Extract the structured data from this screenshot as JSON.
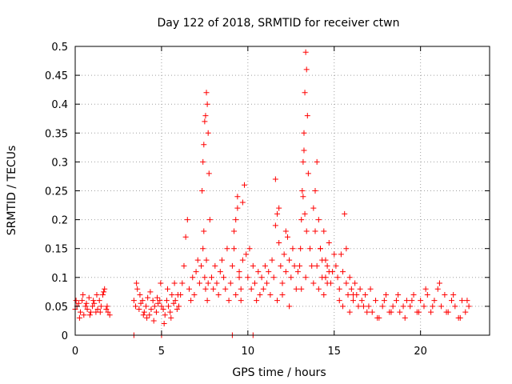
{
  "chart_data": {
    "type": "scatter",
    "title": "Day 122 of 2018, SRMTID for receiver ctwn",
    "xlabel": "GPS time / hours",
    "ylabel": "SRMTID / TECUs",
    "xlim": [
      0,
      24
    ],
    "ylim": [
      0,
      0.5
    ],
    "xticks": [
      0,
      5,
      10,
      15,
      20
    ],
    "xtick_labels": [
      "0",
      "5",
      "10",
      "15",
      "20"
    ],
    "yticks": [
      0,
      0.05,
      0.1,
      0.15,
      0.2,
      0.25,
      0.3,
      0.35,
      0.4,
      0.45,
      0.5
    ],
    "ytick_labels": [
      "0",
      "0.05",
      "0.1",
      "0.15",
      "0.2",
      "0.25",
      "0.3",
      "0.35",
      "0.4",
      "0.45",
      "0.5"
    ],
    "grid": true,
    "marker": "+",
    "color": "#ff0000",
    "series": [
      {
        "name": "SRMTID",
        "x": [
          0.0,
          0.1,
          0.2,
          0.3,
          0.4,
          0.5,
          0.6,
          0.7,
          0.8,
          0.9,
          1.0,
          1.1,
          1.2,
          1.3,
          1.4,
          1.5,
          1.6,
          1.7,
          1.8,
          1.9,
          2.0,
          0.05,
          0.25,
          0.45,
          0.65,
          0.85,
          1.05,
          1.25,
          1.45,
          1.65,
          1.85,
          3.4,
          3.5,
          3.6,
          3.7,
          3.8,
          3.9,
          4.0,
          4.1,
          4.2,
          4.3,
          4.4,
          4.5,
          4.6,
          4.7,
          4.8,
          4.9,
          5.0,
          5.1,
          5.2,
          5.3,
          5.4,
          5.5,
          5.6,
          5.7,
          5.8,
          5.9,
          6.0,
          3.55,
          3.75,
          3.95,
          4.15,
          4.35,
          4.55,
          4.75,
          4.95,
          5.15,
          5.35,
          5.55,
          5.75,
          5.95,
          6.1,
          6.2,
          6.3,
          6.4,
          6.5,
          6.6,
          6.7,
          6.8,
          6.9,
          7.0,
          7.1,
          7.2,
          7.3,
          7.35,
          7.4,
          7.45,
          7.5,
          7.55,
          7.6,
          7.65,
          7.7,
          7.75,
          7.8,
          7.4,
          7.45,
          7.5,
          7.55,
          7.6,
          7.65,
          7.7,
          7.9,
          8.0,
          8.1,
          8.2,
          8.3,
          8.4,
          8.5,
          8.6,
          8.7,
          8.8,
          8.9,
          9.0,
          9.1,
          9.2,
          9.3,
          9.4,
          9.5,
          9.6,
          9.7,
          9.8,
          9.9,
          9.2,
          9.3,
          9.4,
          9.5,
          9.6,
          9.7,
          10.0,
          10.1,
          10.2,
          10.3,
          10.4,
          10.5,
          10.6,
          10.7,
          10.8,
          10.9,
          11.0,
          11.1,
          11.2,
          11.3,
          11.4,
          11.5,
          11.6,
          11.7,
          11.8,
          11.9,
          12.0,
          12.1,
          12.2,
          12.3,
          12.4,
          12.5,
          12.6,
          12.7,
          12.8,
          12.9,
          11.6,
          11.7,
          11.8,
          12.0,
          12.2,
          12.4,
          13.0,
          13.05,
          13.1,
          13.15,
          13.2,
          13.25,
          13.3,
          13.35,
          13.4,
          13.45,
          13.5,
          13.1,
          13.2,
          13.25,
          13.3,
          13.35,
          13.4,
          13.6,
          13.7,
          13.8,
          13.9,
          14.0,
          14.1,
          14.2,
          14.3,
          14.4,
          14.5,
          14.6,
          14.7,
          14.8,
          14.9,
          15.0,
          13.8,
          13.9,
          14.0,
          14.1,
          14.2,
          14.3,
          14.4,
          14.5,
          14.6,
          14.7,
          15.1,
          15.2,
          15.3,
          15.4,
          15.5,
          15.6,
          15.7,
          15.8,
          15.9,
          16.0,
          16.1,
          16.2,
          16.3,
          16.4,
          16.5,
          16.6,
          16.7,
          16.8,
          16.9,
          15.3,
          15.5,
          15.7,
          15.9,
          16.1,
          17.0,
          17.2,
          17.4,
          17.6,
          17.8,
          18.0,
          18.2,
          18.4,
          18.6,
          18.8,
          19.0,
          19.2,
          19.4,
          19.6,
          19.8,
          20.0,
          20.2,
          20.4,
          20.6,
          20.8,
          21.0,
          21.2,
          21.4,
          21.6,
          21.8,
          22.0,
          22.2,
          22.4,
          22.6,
          22.8,
          17.1,
          17.5,
          17.9,
          18.3,
          18.7,
          19.1,
          19.5,
          19.9,
          20.3,
          20.7,
          21.1,
          21.5,
          21.9,
          22.3,
          22.7,
          3.4,
          5.0,
          9.1,
          10.3
        ],
        "y": [
          0.045,
          0.05,
          0.055,
          0.04,
          0.06,
          0.035,
          0.05,
          0.045,
          0.065,
          0.04,
          0.05,
          0.055,
          0.04,
          0.045,
          0.06,
          0.05,
          0.07,
          0.08,
          0.045,
          0.04,
          0.035,
          0.06,
          0.03,
          0.07,
          0.055,
          0.035,
          0.06,
          0.07,
          0.04,
          0.075,
          0.05,
          0.06,
          0.05,
          0.08,
          0.045,
          0.055,
          0.06,
          0.04,
          0.05,
          0.065,
          0.035,
          0.045,
          0.06,
          0.05,
          0.04,
          0.055,
          0.06,
          0.05,
          0.045,
          0.035,
          0.06,
          0.05,
          0.04,
          0.07,
          0.055,
          0.06,
          0.045,
          0.05,
          0.09,
          0.07,
          0.035,
          0.03,
          0.075,
          0.025,
          0.065,
          0.09,
          0.02,
          0.08,
          0.03,
          0.09,
          0.07,
          0.07,
          0.09,
          0.12,
          0.17,
          0.2,
          0.08,
          0.06,
          0.1,
          0.07,
          0.11,
          0.13,
          0.09,
          0.12,
          0.25,
          0.3,
          0.33,
          0.37,
          0.38,
          0.42,
          0.4,
          0.35,
          0.28,
          0.2,
          0.15,
          0.18,
          0.1,
          0.08,
          0.13,
          0.06,
          0.09,
          0.1,
          0.08,
          0.12,
          0.09,
          0.07,
          0.11,
          0.13,
          0.1,
          0.08,
          0.15,
          0.06,
          0.09,
          0.12,
          0.15,
          0.2,
          0.24,
          0.1,
          0.08,
          0.23,
          0.26,
          0.14,
          0.18,
          0.07,
          0.22,
          0.11,
          0.06,
          0.13,
          0.1,
          0.15,
          0.08,
          0.12,
          0.09,
          0.06,
          0.11,
          0.07,
          0.1,
          0.08,
          0.12,
          0.09,
          0.11,
          0.07,
          0.13,
          0.1,
          0.27,
          0.21,
          0.16,
          0.12,
          0.09,
          0.14,
          0.11,
          0.17,
          0.13,
          0.1,
          0.15,
          0.12,
          0.08,
          0.11,
          0.19,
          0.06,
          0.22,
          0.07,
          0.18,
          0.05,
          0.12,
          0.15,
          0.2,
          0.25,
          0.3,
          0.35,
          0.42,
          0.49,
          0.46,
          0.38,
          0.28,
          0.08,
          0.24,
          0.32,
          0.21,
          0.1,
          0.18,
          0.15,
          0.12,
          0.09,
          0.25,
          0.3,
          0.2,
          0.15,
          0.13,
          0.18,
          0.1,
          0.12,
          0.16,
          0.09,
          0.11,
          0.14,
          0.22,
          0.18,
          0.12,
          0.08,
          0.15,
          0.1,
          0.07,
          0.13,
          0.09,
          0.11,
          0.12,
          0.1,
          0.08,
          0.14,
          0.11,
          0.21,
          0.09,
          0.07,
          0.1,
          0.08,
          0.06,
          0.09,
          0.07,
          0.05,
          0.08,
          0.06,
          0.05,
          0.07,
          0.04,
          0.06,
          0.05,
          0.15,
          0.04,
          0.07,
          0.05,
          0.04,
          0.06,
          0.03,
          0.05,
          0.07,
          0.04,
          0.05,
          0.06,
          0.04,
          0.05,
          0.06,
          0.05,
          0.07,
          0.04,
          0.06,
          0.05,
          0.07,
          0.04,
          0.06,
          0.08,
          0.05,
          0.07,
          0.04,
          0.06,
          0.05,
          0.03,
          0.06,
          0.04,
          0.05,
          0.08,
          0.03,
          0.06,
          0.04,
          0.07,
          0.03,
          0.06,
          0.04,
          0.08,
          0.05,
          0.09,
          0.04,
          0.07,
          0.03,
          0.06,
          0.0,
          0.0,
          0.0,
          0.0
        ]
      }
    ]
  }
}
